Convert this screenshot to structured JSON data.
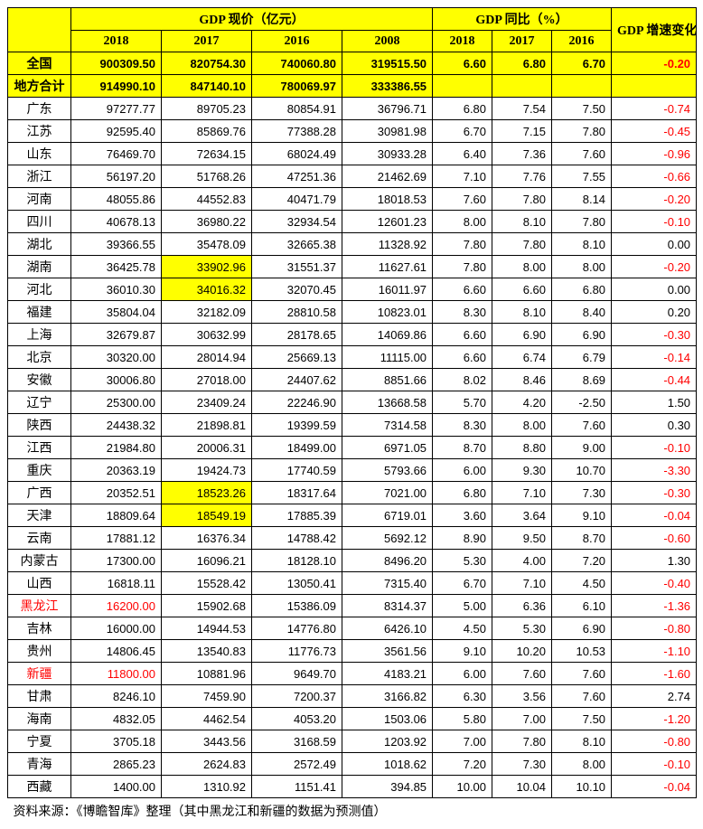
{
  "headers": {
    "group1": "GDP 现价（亿元）",
    "group2": "GDP 同比（%）",
    "group3": "GDP 增速变化（%）",
    "years_gdp": [
      "2018",
      "2017",
      "2016",
      "2008"
    ],
    "years_yoy": [
      "2018",
      "2017",
      "2016"
    ]
  },
  "summary_rows": [
    {
      "name": "全国",
      "gdp": [
        "900309.50",
        "820754.30",
        "740060.80",
        "319515.50"
      ],
      "yoy": [
        "6.60",
        "6.80",
        "6.70"
      ],
      "chg": "-0.20",
      "chg_red": true
    },
    {
      "name": "地方合计",
      "gdp": [
        "914990.10",
        "847140.10",
        "780069.97",
        "333386.55"
      ],
      "yoy": [
        "",
        "",
        ""
      ],
      "chg": "",
      "chg_red": false
    }
  ],
  "rows": [
    {
      "name": "广东",
      "gdp": [
        "97277.77",
        "89705.23",
        "80854.91",
        "36796.71"
      ],
      "yoy": [
        "6.80",
        "7.54",
        "7.50"
      ],
      "chg": "-0.74",
      "chg_red": true
    },
    {
      "name": "江苏",
      "gdp": [
        "92595.40",
        "85869.76",
        "77388.28",
        "30981.98"
      ],
      "yoy": [
        "6.70",
        "7.15",
        "7.80"
      ],
      "chg": "-0.45",
      "chg_red": true
    },
    {
      "name": "山东",
      "gdp": [
        "76469.70",
        "72634.15",
        "68024.49",
        "30933.28"
      ],
      "yoy": [
        "6.40",
        "7.36",
        "7.60"
      ],
      "chg": "-0.96",
      "chg_red": true
    },
    {
      "name": "浙江",
      "gdp": [
        "56197.20",
        "51768.26",
        "47251.36",
        "21462.69"
      ],
      "yoy": [
        "7.10",
        "7.76",
        "7.55"
      ],
      "chg": "-0.66",
      "chg_red": true
    },
    {
      "name": "河南",
      "gdp": [
        "48055.86",
        "44552.83",
        "40471.79",
        "18018.53"
      ],
      "yoy": [
        "7.60",
        "7.80",
        "8.14"
      ],
      "chg": "-0.20",
      "chg_red": true
    },
    {
      "name": "四川",
      "gdp": [
        "40678.13",
        "36980.22",
        "32934.54",
        "12601.23"
      ],
      "yoy": [
        "8.00",
        "8.10",
        "7.80"
      ],
      "chg": "-0.10",
      "chg_red": true
    },
    {
      "name": "湖北",
      "gdp": [
        "39366.55",
        "35478.09",
        "32665.38",
        "11328.92"
      ],
      "yoy": [
        "7.80",
        "7.80",
        "8.10"
      ],
      "chg": "0.00",
      "chg_red": false
    },
    {
      "name": "湖南",
      "gdp": [
        "36425.78",
        "33902.96",
        "31551.37",
        "11627.61"
      ],
      "gdp_hl": [
        false,
        true,
        false,
        false
      ],
      "yoy": [
        "7.80",
        "8.00",
        "8.00"
      ],
      "chg": "-0.20",
      "chg_red": true
    },
    {
      "name": "河北",
      "gdp": [
        "36010.30",
        "34016.32",
        "32070.45",
        "16011.97"
      ],
      "gdp_hl": [
        false,
        true,
        false,
        false
      ],
      "yoy": [
        "6.60",
        "6.60",
        "6.80"
      ],
      "chg": "0.00",
      "chg_red": false
    },
    {
      "name": "福建",
      "gdp": [
        "35804.04",
        "32182.09",
        "28810.58",
        "10823.01"
      ],
      "yoy": [
        "8.30",
        "8.10",
        "8.40"
      ],
      "chg": "0.20",
      "chg_red": false
    },
    {
      "name": "上海",
      "gdp": [
        "32679.87",
        "30632.99",
        "28178.65",
        "14069.86"
      ],
      "yoy": [
        "6.60",
        "6.90",
        "6.90"
      ],
      "chg": "-0.30",
      "chg_red": true
    },
    {
      "name": "北京",
      "gdp": [
        "30320.00",
        "28014.94",
        "25669.13",
        "11115.00"
      ],
      "yoy": [
        "6.60",
        "6.74",
        "6.79"
      ],
      "chg": "-0.14",
      "chg_red": true
    },
    {
      "name": "安徽",
      "gdp": [
        "30006.80",
        "27018.00",
        "24407.62",
        "8851.66"
      ],
      "yoy": [
        "8.02",
        "8.46",
        "8.69"
      ],
      "chg": "-0.44",
      "chg_red": true
    },
    {
      "name": "辽宁",
      "gdp": [
        "25300.00",
        "23409.24",
        "22246.90",
        "13668.58"
      ],
      "yoy": [
        "5.70",
        "4.20",
        "-2.50"
      ],
      "chg": "1.50",
      "chg_red": false
    },
    {
      "name": "陕西",
      "gdp": [
        "24438.32",
        "21898.81",
        "19399.59",
        "7314.58"
      ],
      "yoy": [
        "8.30",
        "8.00",
        "7.60"
      ],
      "chg": "0.30",
      "chg_red": false
    },
    {
      "name": "江西",
      "gdp": [
        "21984.80",
        "20006.31",
        "18499.00",
        "6971.05"
      ],
      "yoy": [
        "8.70",
        "8.80",
        "9.00"
      ],
      "chg": "-0.10",
      "chg_red": true
    },
    {
      "name": "重庆",
      "gdp": [
        "20363.19",
        "19424.73",
        "17740.59",
        "5793.66"
      ],
      "yoy": [
        "6.00",
        "9.30",
        "10.70"
      ],
      "chg": "-3.30",
      "chg_red": true
    },
    {
      "name": "广西",
      "gdp": [
        "20352.51",
        "18523.26",
        "18317.64",
        "7021.00"
      ],
      "gdp_hl": [
        false,
        true,
        false,
        false
      ],
      "yoy": [
        "6.80",
        "7.10",
        "7.30"
      ],
      "chg": "-0.30",
      "chg_red": true
    },
    {
      "name": "天津",
      "gdp": [
        "18809.64",
        "18549.19",
        "17885.39",
        "6719.01"
      ],
      "gdp_hl": [
        false,
        true,
        false,
        false
      ],
      "yoy": [
        "3.60",
        "3.64",
        "9.10"
      ],
      "chg": "-0.04",
      "chg_red": true
    },
    {
      "name": "云南",
      "gdp": [
        "17881.12",
        "16376.34",
        "14788.42",
        "5692.12"
      ],
      "yoy": [
        "8.90",
        "9.50",
        "8.70"
      ],
      "chg": "-0.60",
      "chg_red": true
    },
    {
      "name": "内蒙古",
      "gdp": [
        "17300.00",
        "16096.21",
        "18128.10",
        "8496.20"
      ],
      "yoy": [
        "5.30",
        "4.00",
        "7.20"
      ],
      "chg": "1.30",
      "chg_red": false
    },
    {
      "name": "山西",
      "gdp": [
        "16818.11",
        "15528.42",
        "13050.41",
        "7315.40"
      ],
      "yoy": [
        "6.70",
        "7.10",
        "4.50"
      ],
      "chg": "-0.40",
      "chg_red": true
    },
    {
      "name": "黑龙江",
      "name_red": true,
      "gdp": [
        "16200.00",
        "15902.68",
        "15386.09",
        "8314.37"
      ],
      "gdp_red": [
        true,
        false,
        false,
        false
      ],
      "yoy": [
        "5.00",
        "6.36",
        "6.10"
      ],
      "chg": "-1.36",
      "chg_red": true
    },
    {
      "name": "吉林",
      "gdp": [
        "16000.00",
        "14944.53",
        "14776.80",
        "6426.10"
      ],
      "yoy": [
        "4.50",
        "5.30",
        "6.90"
      ],
      "chg": "-0.80",
      "chg_red": true
    },
    {
      "name": "贵州",
      "gdp": [
        "14806.45",
        "13540.83",
        "11776.73",
        "3561.56"
      ],
      "yoy": [
        "9.10",
        "10.20",
        "10.53"
      ],
      "chg": "-1.10",
      "chg_red": true
    },
    {
      "name": "新疆",
      "name_red": true,
      "gdp": [
        "11800.00",
        "10881.96",
        "9649.70",
        "4183.21"
      ],
      "gdp_red": [
        true,
        false,
        false,
        false
      ],
      "yoy": [
        "6.00",
        "7.60",
        "7.60"
      ],
      "chg": "-1.60",
      "chg_red": true
    },
    {
      "name": "甘肃",
      "gdp": [
        "8246.10",
        "7459.90",
        "7200.37",
        "3166.82"
      ],
      "yoy": [
        "6.30",
        "3.56",
        "7.60"
      ],
      "chg": "2.74",
      "chg_red": false
    },
    {
      "name": "海南",
      "gdp": [
        "4832.05",
        "4462.54",
        "4053.20",
        "1503.06"
      ],
      "yoy": [
        "5.80",
        "7.00",
        "7.50"
      ],
      "chg": "-1.20",
      "chg_red": true
    },
    {
      "name": "宁夏",
      "gdp": [
        "3705.18",
        "3443.56",
        "3168.59",
        "1203.92"
      ],
      "yoy": [
        "7.00",
        "7.80",
        "8.10"
      ],
      "chg": "-0.80",
      "chg_red": true
    },
    {
      "name": "青海",
      "gdp": [
        "2865.23",
        "2624.83",
        "2572.49",
        "1018.62"
      ],
      "yoy": [
        "7.20",
        "7.30",
        "8.00"
      ],
      "chg": "-0.10",
      "chg_red": true
    },
    {
      "name": "西藏",
      "gdp": [
        "1400.00",
        "1310.92",
        "1151.41",
        "394.85"
      ],
      "yoy": [
        "10.00",
        "10.04",
        "10.10"
      ],
      "chg": "-0.04",
      "chg_red": true
    }
  ],
  "source": "资料来源：《博瞻智库》整理（其中黑龙江和新疆的数据为预测值）",
  "colors": {
    "highlight": "#ffff00",
    "red": "#ff0000",
    "border": "#000000",
    "bg": "#ffffff"
  }
}
